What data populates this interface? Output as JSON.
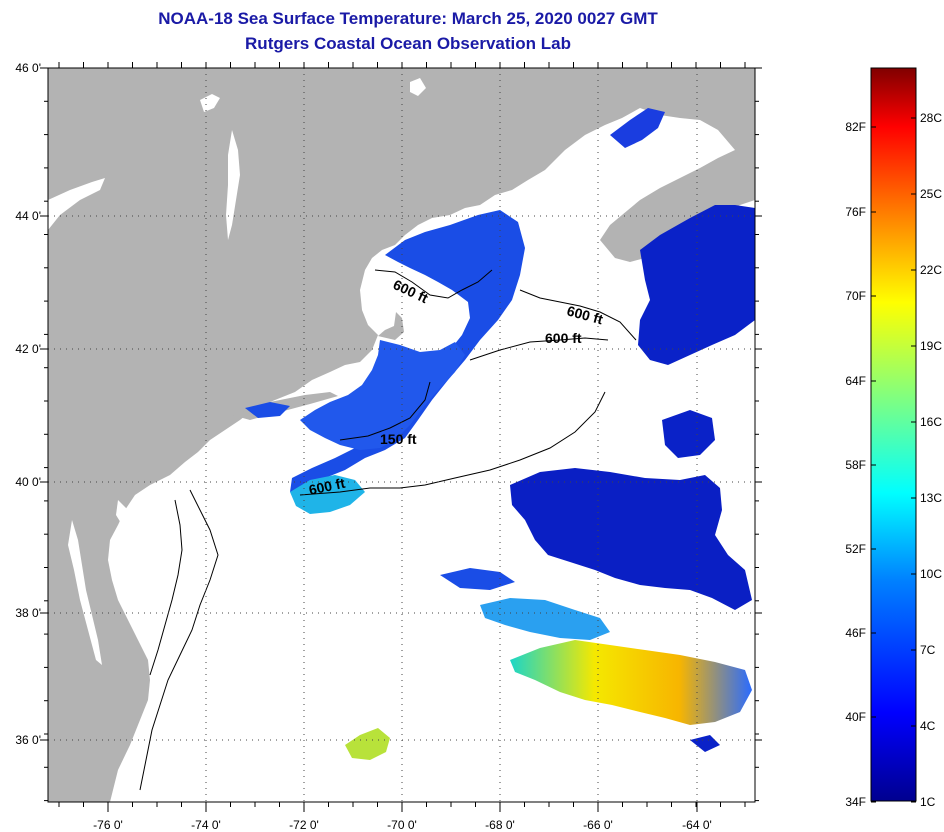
{
  "title": {
    "line1": "NOAA-18 Sea Surface Temperature:  March 25, 2020 0027 GMT",
    "line2": "Rutgers Coastal Ocean Observation Lab"
  },
  "colors": {
    "land": "#b3b3b3",
    "no_data": "#ffffff",
    "title_text": "#1a1aa6"
  },
  "map": {
    "lat_ticks": [
      "46 0'",
      "44 0'",
      "42 0'",
      "40 0'",
      "38 0'",
      "36 0'"
    ],
    "lon_ticks": [
      "-76 0'",
      "-74 0'",
      "-72 0'",
      "-70 0'",
      "-68 0'",
      "-66 0'",
      "-64 0'"
    ],
    "contour_labels": [
      "600 ft",
      "600 ft",
      "600 ft",
      "150 ft",
      "600 ft"
    ]
  },
  "colorbar": {
    "fahrenheit_labels": [
      "82F",
      "76F",
      "70F",
      "64F",
      "58F",
      "52F",
      "46F",
      "40F",
      "34F"
    ],
    "celsius_labels": [
      "28C",
      "25C",
      "22C",
      "19C",
      "16C",
      "13C",
      "10C",
      "7C",
      "4C",
      "1C"
    ],
    "gradient_stops": [
      "#00008f",
      "#0000ff",
      "#0080ff",
      "#00ffff",
      "#80ff80",
      "#ffff00",
      "#ff8000",
      "#ff0000",
      "#800000"
    ]
  }
}
